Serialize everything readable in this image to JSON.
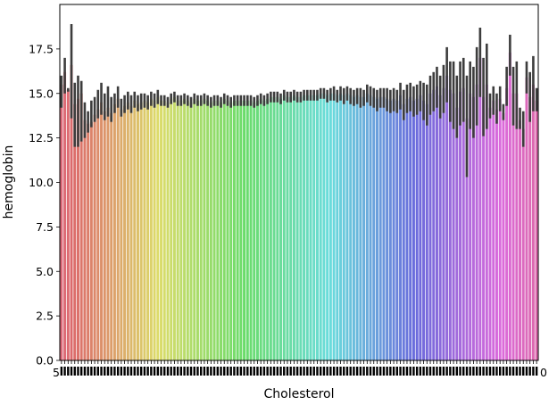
{
  "chart_data": {
    "type": "bar",
    "xlabel": "Cholesterol",
    "ylabel": "hemoglobin",
    "ylim": [
      0,
      20
    ],
    "yticks": [
      0.0,
      2.5,
      5.0,
      7.5,
      10.0,
      12.5,
      15.0,
      17.5
    ],
    "ytick_labels": [
      "0.0",
      "2.5",
      "5.0",
      "7.5",
      "10.0",
      "12.5",
      "15.0",
      "17.5"
    ],
    "x_first_label": "5",
    "x_last_label": "0",
    "grid": false,
    "legend": "none",
    "error_bars": true,
    "values": [
      15.5,
      16.2,
      15.2,
      16.6,
      14.4,
      14.7,
      15.0,
      13.5,
      13.3,
      13.4,
      13.8,
      14.1,
      14.5,
      14.0,
      14.2,
      13.9,
      14.4,
      14.7,
      14.1,
      14.3,
      14.5,
      14.3,
      14.6,
      14.4,
      14.5,
      14.6,
      14.5,
      14.7,
      14.6,
      14.8,
      14.6,
      14.6,
      14.5,
      14.7,
      14.8,
      14.6,
      14.6,
      14.7,
      14.6,
      14.5,
      14.7,
      14.6,
      14.6,
      14.7,
      14.6,
      14.5,
      14.6,
      14.6,
      14.5,
      14.7,
      14.6,
      14.5,
      14.6,
      14.6,
      14.6,
      14.6,
      14.6,
      14.6,
      14.5,
      14.6,
      14.7,
      14.6,
      14.7,
      14.8,
      14.8,
      14.8,
      14.7,
      14.9,
      14.8,
      14.8,
      14.9,
      14.8,
      14.8,
      14.9,
      14.9,
      14.9,
      14.9,
      14.9,
      15.0,
      15.0,
      14.9,
      15.0,
      15.0,
      14.9,
      15.0,
      14.9,
      15.0,
      14.9,
      14.8,
      14.9,
      14.8,
      14.8,
      15.0,
      14.9,
      14.8,
      14.7,
      14.8,
      14.8,
      14.7,
      14.6,
      14.7,
      14.6,
      14.9,
      14.4,
      14.7,
      14.8,
      14.6,
      14.7,
      14.9,
      14.6,
      14.4,
      15.0,
      15.2,
      15.4,
      14.9,
      15.3,
      16.0,
      15.2,
      15.0,
      14.2,
      15.1,
      15.3,
      13.6,
      15.0,
      14.8,
      15.5,
      17.0,
      14.8,
      15.5,
      14.2,
      14.6,
      14.1,
      14.7,
      13.9,
      15.3,
      17.3,
      15.0,
      15.0,
      13.5,
      13.0,
      15.9,
      14.8,
      15.5,
      14.6
    ],
    "error_low": [
      14.2,
      15.0,
      15.1,
      13.6,
      12.0,
      12.0,
      12.3,
      12.5,
      12.8,
      13.1,
      13.4,
      13.6,
      13.8,
      13.5,
      13.7,
      13.4,
      13.9,
      14.2,
      13.7,
      13.9,
      14.1,
      13.9,
      14.2,
      14.0,
      14.1,
      14.2,
      14.1,
      14.3,
      14.2,
      14.4,
      14.3,
      14.3,
      14.2,
      14.4,
      14.5,
      14.3,
      14.3,
      14.4,
      14.3,
      14.2,
      14.4,
      14.3,
      14.3,
      14.4,
      14.3,
      14.2,
      14.3,
      14.3,
      14.2,
      14.4,
      14.3,
      14.2,
      14.3,
      14.3,
      14.3,
      14.3,
      14.3,
      14.3,
      14.2,
      14.3,
      14.4,
      14.3,
      14.4,
      14.5,
      14.5,
      14.5,
      14.4,
      14.6,
      14.5,
      14.5,
      14.6,
      14.5,
      14.5,
      14.6,
      14.6,
      14.6,
      14.6,
      14.6,
      14.7,
      14.7,
      14.5,
      14.6,
      14.6,
      14.5,
      14.6,
      14.4,
      14.6,
      14.4,
      14.3,
      14.4,
      14.2,
      14.3,
      14.5,
      14.3,
      14.2,
      14.0,
      14.2,
      14.2,
      14.0,
      13.9,
      14.0,
      13.9,
      14.1,
      13.5,
      13.9,
      14.0,
      13.7,
      13.8,
      14.0,
      13.5,
      13.2,
      13.8,
      14.0,
      14.2,
      13.6,
      13.9,
      14.5,
      13.4,
      13.0,
      12.5,
      13.2,
      13.4,
      10.3,
      13.0,
      12.5,
      13.2,
      14.8,
      12.6,
      13.0,
      13.6,
      13.8,
      13.3,
      14.0,
      13.5,
      14.3,
      16.0,
      13.2,
      13.0,
      13.0,
      12.0,
      15.0,
      13.4,
      14.0,
      14.0
    ],
    "error_high": [
      16.0,
      17.0,
      15.3,
      18.9,
      15.6,
      16.0,
      15.7,
      14.5,
      14.0,
      14.6,
      14.8,
      15.2,
      15.6,
      15.0,
      15.4,
      14.8,
      15.0,
      15.4,
      14.7,
      14.9,
      15.1,
      14.9,
      15.1,
      14.9,
      15.0,
      15.0,
      14.9,
      15.1,
      15.0,
      15.2,
      14.9,
      14.9,
      14.8,
      15.0,
      15.1,
      14.9,
      14.9,
      15.0,
      14.9,
      14.8,
      15.0,
      14.9,
      14.9,
      15.0,
      14.9,
      14.8,
      14.9,
      14.9,
      14.8,
      15.0,
      14.9,
      14.8,
      14.9,
      14.9,
      14.9,
      14.9,
      14.9,
      14.9,
      14.8,
      14.9,
      15.0,
      14.9,
      15.0,
      15.1,
      15.1,
      15.1,
      15.0,
      15.2,
      15.1,
      15.1,
      15.2,
      15.1,
      15.1,
      15.2,
      15.2,
      15.2,
      15.2,
      15.2,
      15.3,
      15.3,
      15.2,
      15.3,
      15.4,
      15.2,
      15.4,
      15.3,
      15.4,
      15.3,
      15.2,
      15.3,
      15.3,
      15.2,
      15.5,
      15.4,
      15.3,
      15.2,
      15.3,
      15.3,
      15.3,
      15.2,
      15.3,
      15.2,
      15.6,
      15.2,
      15.5,
      15.6,
      15.4,
      15.5,
      15.7,
      15.6,
      15.5,
      16.0,
      16.2,
      16.5,
      16.0,
      16.6,
      17.6,
      16.8,
      16.8,
      16.0,
      16.8,
      17.0,
      16.0,
      16.8,
      16.5,
      17.6,
      18.7,
      17.0,
      17.8,
      15.0,
      15.4,
      15.0,
      15.4,
      14.4,
      16.5,
      18.3,
      16.5,
      16.8,
      14.2,
      14.0,
      16.8,
      16.2,
      17.1,
      15.3
    ]
  }
}
